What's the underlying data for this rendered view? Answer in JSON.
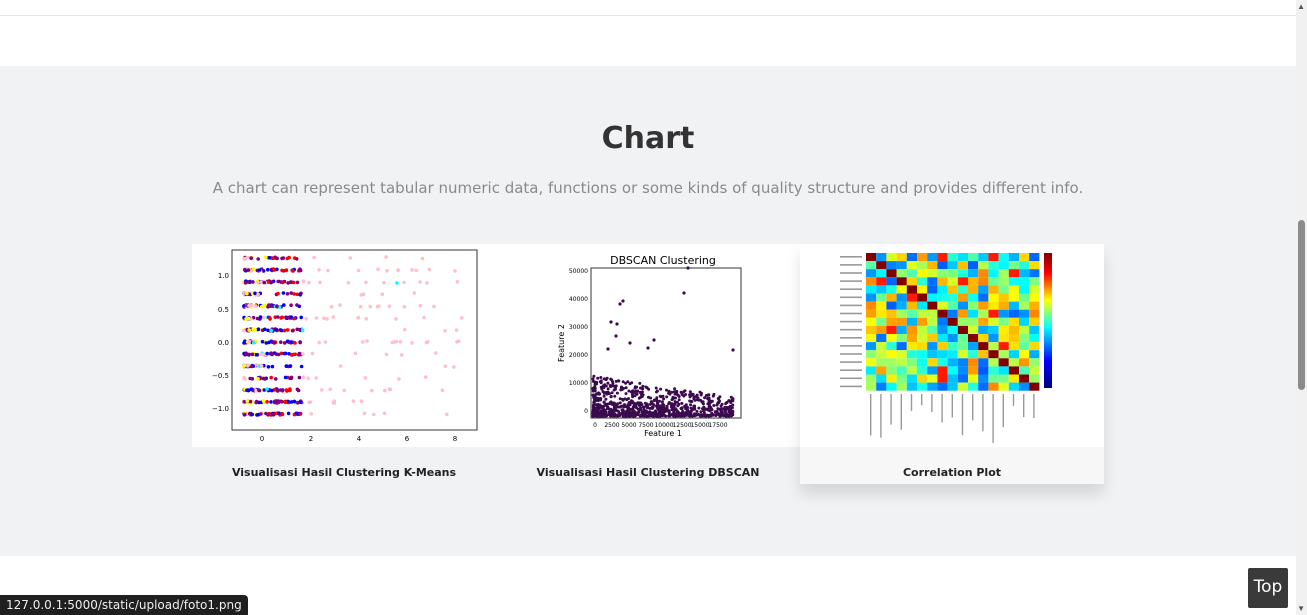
{
  "section": {
    "title": "Chart",
    "subtitle": "A chart can represent tabular numeric data, functions or some kinds of quality structure and provides different info."
  },
  "cards": [
    {
      "caption": "Visualisasi Hasil Clustering K-Means"
    },
    {
      "caption": "Visualisasi Hasil Clustering DBSCAN"
    },
    {
      "caption": "Correlation Plot"
    }
  ],
  "kmeans_axes": {
    "x_ticks": [
      "0",
      "2",
      "4",
      "6",
      "8"
    ],
    "y_ticks": [
      "1.0",
      "0.5",
      "0.0",
      "−0.5",
      "−1.0"
    ]
  },
  "dbscan": {
    "title": "DBSCAN Clustering",
    "xlabel": "Feature 1",
    "ylabel": "Feature 2",
    "x_ticks": [
      "0",
      "2500",
      "5000",
      "7500",
      "10000",
      "12500",
      "15000",
      "17500"
    ],
    "y_ticks": [
      "0",
      "10000",
      "20000",
      "30000",
      "40000",
      "50000"
    ]
  },
  "top_button": "Top",
  "status_url": "127.0.0.1:5000/static/upload/foto1.png",
  "colors": {
    "section_bg": "#f1f2f4",
    "kmeans_clusters": [
      "#ffc0cb",
      "#ff0000",
      "#800080",
      "#0000ff",
      "#ffff00",
      "#00ffff"
    ],
    "dbscan_points": "#3b0a4f"
  }
}
